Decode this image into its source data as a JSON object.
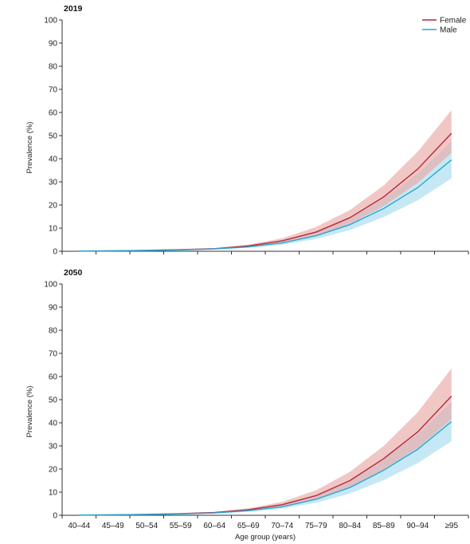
{
  "colors": {
    "female_line": "#b5283e",
    "female_band": "#e9a9a6",
    "male_line": "#2aa6d1",
    "male_band": "#a8dcef",
    "axis": "#333333"
  },
  "chart_data": [
    {
      "type": "line",
      "title": "2019",
      "xlabel": "",
      "ylabel": "Prevalence (%)",
      "ylim": [
        0,
        100
      ],
      "yticks": [
        0,
        10,
        20,
        30,
        40,
        50,
        60,
        70,
        80,
        90,
        100
      ],
      "categories": [
        "40–44",
        "45–49",
        "50–54",
        "55–59",
        "60–64",
        "65–69",
        "70–74",
        "75–79",
        "80–84",
        "85–89",
        "90–94",
        "≥95"
      ],
      "show_x_tick_labels": false,
      "legend": "top-right",
      "series": [
        {
          "name": "Female",
          "color": "#b5283e",
          "band_color": "#e9a9a6",
          "values": [
            0.1,
            0.2,
            0.4,
            0.7,
            1.1,
            2.3,
            4.5,
            8.3,
            14.5,
            23.5,
            35.5,
            51
          ],
          "lower": [
            0.05,
            0.15,
            0.3,
            0.5,
            0.9,
            1.8,
            3.6,
            6.8,
            11.8,
            19.5,
            29.5,
            42.5
          ],
          "upper": [
            0.15,
            0.3,
            0.5,
            0.9,
            1.4,
            2.9,
            5.6,
            10.5,
            17.8,
            28.5,
            43,
            61
          ]
        },
        {
          "name": "Male",
          "color": "#2aa6d1",
          "band_color": "#a8dcef",
          "values": [
            0.1,
            0.2,
            0.3,
            0.6,
            1.0,
            1.9,
            3.6,
            6.7,
            11.5,
            18.5,
            27.5,
            39.5
          ],
          "lower": [
            0.05,
            0.1,
            0.2,
            0.45,
            0.8,
            1.5,
            2.8,
            5.3,
            9.2,
            14.8,
            22,
            31.5
          ],
          "upper": [
            0.15,
            0.25,
            0.4,
            0.8,
            1.3,
            2.4,
            4.5,
            8.3,
            14.2,
            22.8,
            33.5,
            47.5
          ]
        }
      ]
    },
    {
      "type": "line",
      "title": "2050",
      "xlabel": "Age group (years)",
      "ylabel": "Prevalence (%)",
      "ylim": [
        0,
        100
      ],
      "yticks": [
        0,
        10,
        20,
        30,
        40,
        50,
        60,
        70,
        80,
        90,
        100
      ],
      "categories": [
        "40–44",
        "45–49",
        "50–54",
        "55–59",
        "60–64",
        "65–69",
        "70–74",
        "75–79",
        "80–84",
        "85–89",
        "90–94",
        "≥95"
      ],
      "show_x_tick_labels": true,
      "legend": "",
      "series": [
        {
          "name": "Female",
          "color": "#b5283e",
          "band_color": "#e9a9a6",
          "values": [
            0.1,
            0.2,
            0.4,
            0.7,
            1.2,
            2.4,
            4.6,
            8.5,
            15,
            24.5,
            36,
            51.5
          ],
          "lower": [
            0.05,
            0.15,
            0.3,
            0.5,
            0.9,
            1.9,
            3.6,
            6.8,
            12,
            19.8,
            29,
            41.5
          ],
          "upper": [
            0.15,
            0.3,
            0.5,
            0.9,
            1.5,
            3.0,
            5.8,
            10.8,
            18.8,
            30,
            44.5,
            63.5
          ]
        },
        {
          "name": "Male",
          "color": "#2aa6d1",
          "band_color": "#a8dcef",
          "values": [
            0.1,
            0.2,
            0.3,
            0.6,
            1.0,
            2.0,
            3.7,
            6.9,
            12,
            19.5,
            28.5,
            40.5
          ],
          "lower": [
            0.05,
            0.1,
            0.2,
            0.45,
            0.8,
            1.5,
            2.9,
            5.4,
            9.4,
            15.2,
            22.5,
            32
          ],
          "upper": [
            0.15,
            0.25,
            0.4,
            0.8,
            1.3,
            2.5,
            4.6,
            8.6,
            15,
            24.2,
            35,
            49
          ]
        }
      ]
    }
  ]
}
